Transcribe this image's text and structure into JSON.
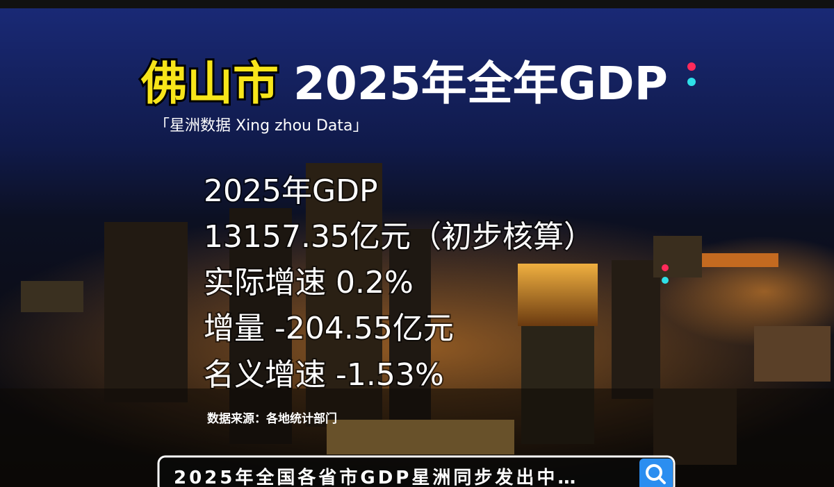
{
  "header": {
    "title_highlight": "佛山市",
    "title_rest": "2025年全年GDP",
    "subtitle": "「星洲数据  Xing zhou Data」"
  },
  "body": {
    "lines": [
      "2025年GDP",
      "13157.35亿元（初步核算）",
      "实际增速 0.2%",
      "增量 -204.55亿元",
      "名义增速 -1.53%"
    ],
    "source": "数据来源：各地统计部门"
  },
  "search_bar": {
    "text": "2025年全国各省市GDP星洲同步发出中…"
  }
}
